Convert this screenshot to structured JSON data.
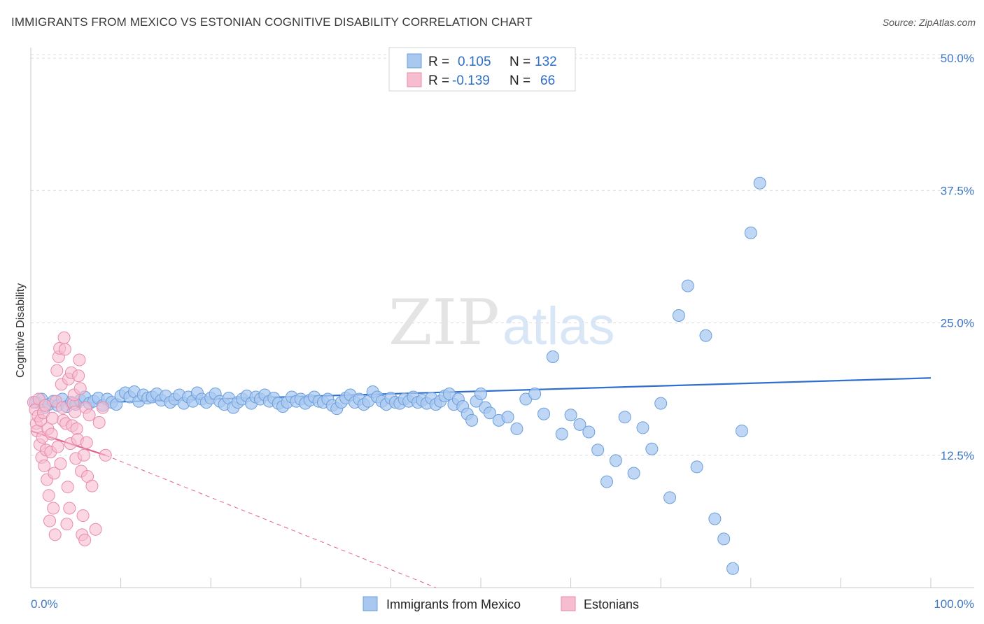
{
  "header": {
    "title": "IMMIGRANTS FROM MEXICO VS ESTONIAN COGNITIVE DISABILITY CORRELATION CHART",
    "source": "Source: ZipAtlas.com"
  },
  "watermark": {
    "part1": "ZIP",
    "part2": "atlas"
  },
  "legend": {
    "rows": [
      {
        "r_label": "R =",
        "r_value": "0.105",
        "n_label": "N =",
        "n_value": "132"
      },
      {
        "r_label": "R =",
        "r_value": "-0.139",
        "n_label": "N =",
        "n_value": "66"
      }
    ]
  },
  "bottom_legend": [
    "Immigrants from Mexico",
    "Estonians"
  ],
  "colors": {
    "blue_fill": "#a9c8f0",
    "blue_stroke": "#6b9fdc",
    "blue_line": "#2f6fcf",
    "pink_fill": "#f6bcd0",
    "pink_stroke": "#e98bab",
    "pink_line": "#e2628e",
    "grid": "#dcdcdc",
    "tick_text": "#3f78c4"
  },
  "chart_data": {
    "type": "scatter",
    "title": "IMMIGRANTS FROM MEXICO VS ESTONIAN COGNITIVE DISABILITY CORRELATION CHART",
    "ylabel": "Cognitive Disability",
    "xlabel": "",
    "xlim": [
      0,
      100
    ],
    "ylim": [
      0,
      51
    ],
    "x_tick_labels": [
      "0.0%",
      "100.0%"
    ],
    "y_ticks": [
      12.5,
      25.0,
      37.5,
      50.0
    ],
    "y_tick_labels": [
      "12.5%",
      "25.0%",
      "37.5%",
      "50.0%"
    ],
    "grid": "horizontal dashed",
    "legend_position": "top-center",
    "series": [
      {
        "name": "Immigrants from Mexico",
        "color": "#a9c8f0",
        "r": 0.105,
        "n": 132,
        "trend": {
          "x": [
            0,
            100
          ],
          "y": [
            17.3,
            19.8
          ]
        },
        "points": [
          [
            0.5,
            17.5
          ],
          [
            1.2,
            17.8
          ],
          [
            1.5,
            17.0
          ],
          [
            2.0,
            17.3
          ],
          [
            2.5,
            17.6
          ],
          [
            3.0,
            17.2
          ],
          [
            3.5,
            17.8
          ],
          [
            4.0,
            17.1
          ],
          [
            4.5,
            17.5
          ],
          [
            5.0,
            17.3
          ],
          [
            5.5,
            17.7
          ],
          [
            6.0,
            18.0
          ],
          [
            6.5,
            17.4
          ],
          [
            7.0,
            17.6
          ],
          [
            7.5,
            17.9
          ],
          [
            8.0,
            17.2
          ],
          [
            8.5,
            17.8
          ],
          [
            9.0,
            17.5
          ],
          [
            9.5,
            17.3
          ],
          [
            10.0,
            18.1
          ],
          [
            10.5,
            18.4
          ],
          [
            11.0,
            18.0
          ],
          [
            11.5,
            18.5
          ],
          [
            12.0,
            17.6
          ],
          [
            12.5,
            18.2
          ],
          [
            13.0,
            17.9
          ],
          [
            13.5,
            18.0
          ],
          [
            14.0,
            18.3
          ],
          [
            14.5,
            17.7
          ],
          [
            15.0,
            18.1
          ],
          [
            15.5,
            17.5
          ],
          [
            16.0,
            17.8
          ],
          [
            16.5,
            18.2
          ],
          [
            17.0,
            17.4
          ],
          [
            17.5,
            18.0
          ],
          [
            18.0,
            17.6
          ],
          [
            18.5,
            18.4
          ],
          [
            19.0,
            17.8
          ],
          [
            19.5,
            17.5
          ],
          [
            20.0,
            17.9
          ],
          [
            20.5,
            18.3
          ],
          [
            21.0,
            17.6
          ],
          [
            21.5,
            17.3
          ],
          [
            22.0,
            17.9
          ],
          [
            22.5,
            17.0
          ],
          [
            23.0,
            17.5
          ],
          [
            23.5,
            17.8
          ],
          [
            24.0,
            18.1
          ],
          [
            24.5,
            17.4
          ],
          [
            25.0,
            18.0
          ],
          [
            25.5,
            17.8
          ],
          [
            26.0,
            18.2
          ],
          [
            26.5,
            17.6
          ],
          [
            27.0,
            17.9
          ],
          [
            27.5,
            17.4
          ],
          [
            28.0,
            17.1
          ],
          [
            28.5,
            17.5
          ],
          [
            29.0,
            18.0
          ],
          [
            29.5,
            17.6
          ],
          [
            30.0,
            17.8
          ],
          [
            30.5,
            17.4
          ],
          [
            31.0,
            17.7
          ],
          [
            31.5,
            18.0
          ],
          [
            32.0,
            17.6
          ],
          [
            32.5,
            17.5
          ],
          [
            33.0,
            17.8
          ],
          [
            33.5,
            17.2
          ],
          [
            34.0,
            16.9
          ],
          [
            34.5,
            17.5
          ],
          [
            35.0,
            17.9
          ],
          [
            35.5,
            18.2
          ],
          [
            36.0,
            17.5
          ],
          [
            36.5,
            17.8
          ],
          [
            37.0,
            17.3
          ],
          [
            37.5,
            17.6
          ],
          [
            38.0,
            18.5
          ],
          [
            38.5,
            18.0
          ],
          [
            39.0,
            17.6
          ],
          [
            39.5,
            17.3
          ],
          [
            40.0,
            17.9
          ],
          [
            40.5,
            17.5
          ],
          [
            41.0,
            17.4
          ],
          [
            41.5,
            17.8
          ],
          [
            42.0,
            17.6
          ],
          [
            42.5,
            18.0
          ],
          [
            43.0,
            17.5
          ],
          [
            43.5,
            17.7
          ],
          [
            44.0,
            17.4
          ],
          [
            44.5,
            17.9
          ],
          [
            45.0,
            17.3
          ],
          [
            45.5,
            17.6
          ],
          [
            46.0,
            18.1
          ],
          [
            46.5,
            18.3
          ],
          [
            47.0,
            17.3
          ],
          [
            47.5,
            17.8
          ],
          [
            48.0,
            17.1
          ],
          [
            48.5,
            16.4
          ],
          [
            49.0,
            15.8
          ],
          [
            49.5,
            17.6
          ],
          [
            50.0,
            18.3
          ],
          [
            50.5,
            17.0
          ],
          [
            51.0,
            16.5
          ],
          [
            52.0,
            15.8
          ],
          [
            53.0,
            16.1
          ],
          [
            54.0,
            15.0
          ],
          [
            55.0,
            17.8
          ],
          [
            56.0,
            18.3
          ],
          [
            57.0,
            16.4
          ],
          [
            58.0,
            21.8
          ],
          [
            59.0,
            14.5
          ],
          [
            60.0,
            16.3
          ],
          [
            61.0,
            15.4
          ],
          [
            62.0,
            14.7
          ],
          [
            63.0,
            13.0
          ],
          [
            64.0,
            10.0
          ],
          [
            65.0,
            12.0
          ],
          [
            66.0,
            16.1
          ],
          [
            67.0,
            10.8
          ],
          [
            68.0,
            15.1
          ],
          [
            69.0,
            13.1
          ],
          [
            70.0,
            17.4
          ],
          [
            71.0,
            8.5
          ],
          [
            72.0,
            25.7
          ],
          [
            73.0,
            28.5
          ],
          [
            74.0,
            11.4
          ],
          [
            75.0,
            23.8
          ],
          [
            76.0,
            6.5
          ],
          [
            77.0,
            4.6
          ],
          [
            78.0,
            1.8
          ],
          [
            79.0,
            14.8
          ],
          [
            80.0,
            33.5
          ],
          [
            81.0,
            38.2
          ]
        ]
      },
      {
        "name": "Estonians",
        "color": "#f6bcd0",
        "r": -0.139,
        "n": 66,
        "trend": {
          "x": [
            0,
            8.3
          ],
          "y": [
            14.8,
            12.5
          ]
        },
        "trend_extension": {
          "x": [
            8.3,
            45
          ],
          "y": [
            12.5,
            0
          ]
        },
        "points": [
          [
            0.3,
            17.5
          ],
          [
            0.5,
            16.8
          ],
          [
            0.6,
            15.5
          ],
          [
            0.7,
            14.8
          ],
          [
            0.8,
            16.2
          ],
          [
            0.9,
            17.8
          ],
          [
            1.0,
            13.5
          ],
          [
            1.1,
            15.8
          ],
          [
            1.2,
            12.3
          ],
          [
            1.3,
            14.2
          ],
          [
            1.4,
            16.5
          ],
          [
            1.5,
            11.5
          ],
          [
            1.6,
            17.2
          ],
          [
            1.7,
            13.0
          ],
          [
            1.8,
            10.2
          ],
          [
            1.9,
            15.0
          ],
          [
            2.0,
            8.7
          ],
          [
            2.1,
            6.3
          ],
          [
            2.2,
            12.8
          ],
          [
            2.3,
            14.5
          ],
          [
            2.4,
            16.0
          ],
          [
            2.5,
            7.5
          ],
          [
            2.6,
            10.8
          ],
          [
            2.7,
            5.0
          ],
          [
            2.8,
            17.6
          ],
          [
            2.9,
            20.5
          ],
          [
            3.0,
            13.3
          ],
          [
            3.1,
            21.8
          ],
          [
            3.2,
            22.6
          ],
          [
            3.3,
            11.7
          ],
          [
            3.4,
            19.2
          ],
          [
            3.5,
            17.0
          ],
          [
            3.6,
            15.8
          ],
          [
            3.7,
            23.6
          ],
          [
            3.8,
            22.5
          ],
          [
            3.9,
            15.5
          ],
          [
            4.0,
            6.0
          ],
          [
            4.1,
            9.5
          ],
          [
            4.2,
            19.7
          ],
          [
            4.3,
            7.5
          ],
          [
            4.4,
            13.6
          ],
          [
            4.5,
            20.3
          ],
          [
            4.6,
            15.3
          ],
          [
            4.7,
            17.4
          ],
          [
            4.8,
            18.2
          ],
          [
            4.9,
            16.6
          ],
          [
            5.0,
            12.2
          ],
          [
            5.1,
            15.0
          ],
          [
            5.2,
            14.0
          ],
          [
            5.3,
            20.0
          ],
          [
            5.4,
            21.5
          ],
          [
            5.5,
            18.8
          ],
          [
            5.6,
            11.0
          ],
          [
            5.7,
            5.0
          ],
          [
            5.8,
            6.8
          ],
          [
            5.9,
            12.5
          ],
          [
            6.0,
            4.5
          ],
          [
            6.1,
            17.0
          ],
          [
            6.2,
            13.7
          ],
          [
            6.3,
            10.5
          ],
          [
            6.5,
            16.3
          ],
          [
            6.8,
            9.6
          ],
          [
            7.2,
            5.5
          ],
          [
            7.6,
            15.6
          ],
          [
            8.0,
            17.0
          ],
          [
            8.3,
            12.5
          ]
        ]
      }
    ]
  }
}
